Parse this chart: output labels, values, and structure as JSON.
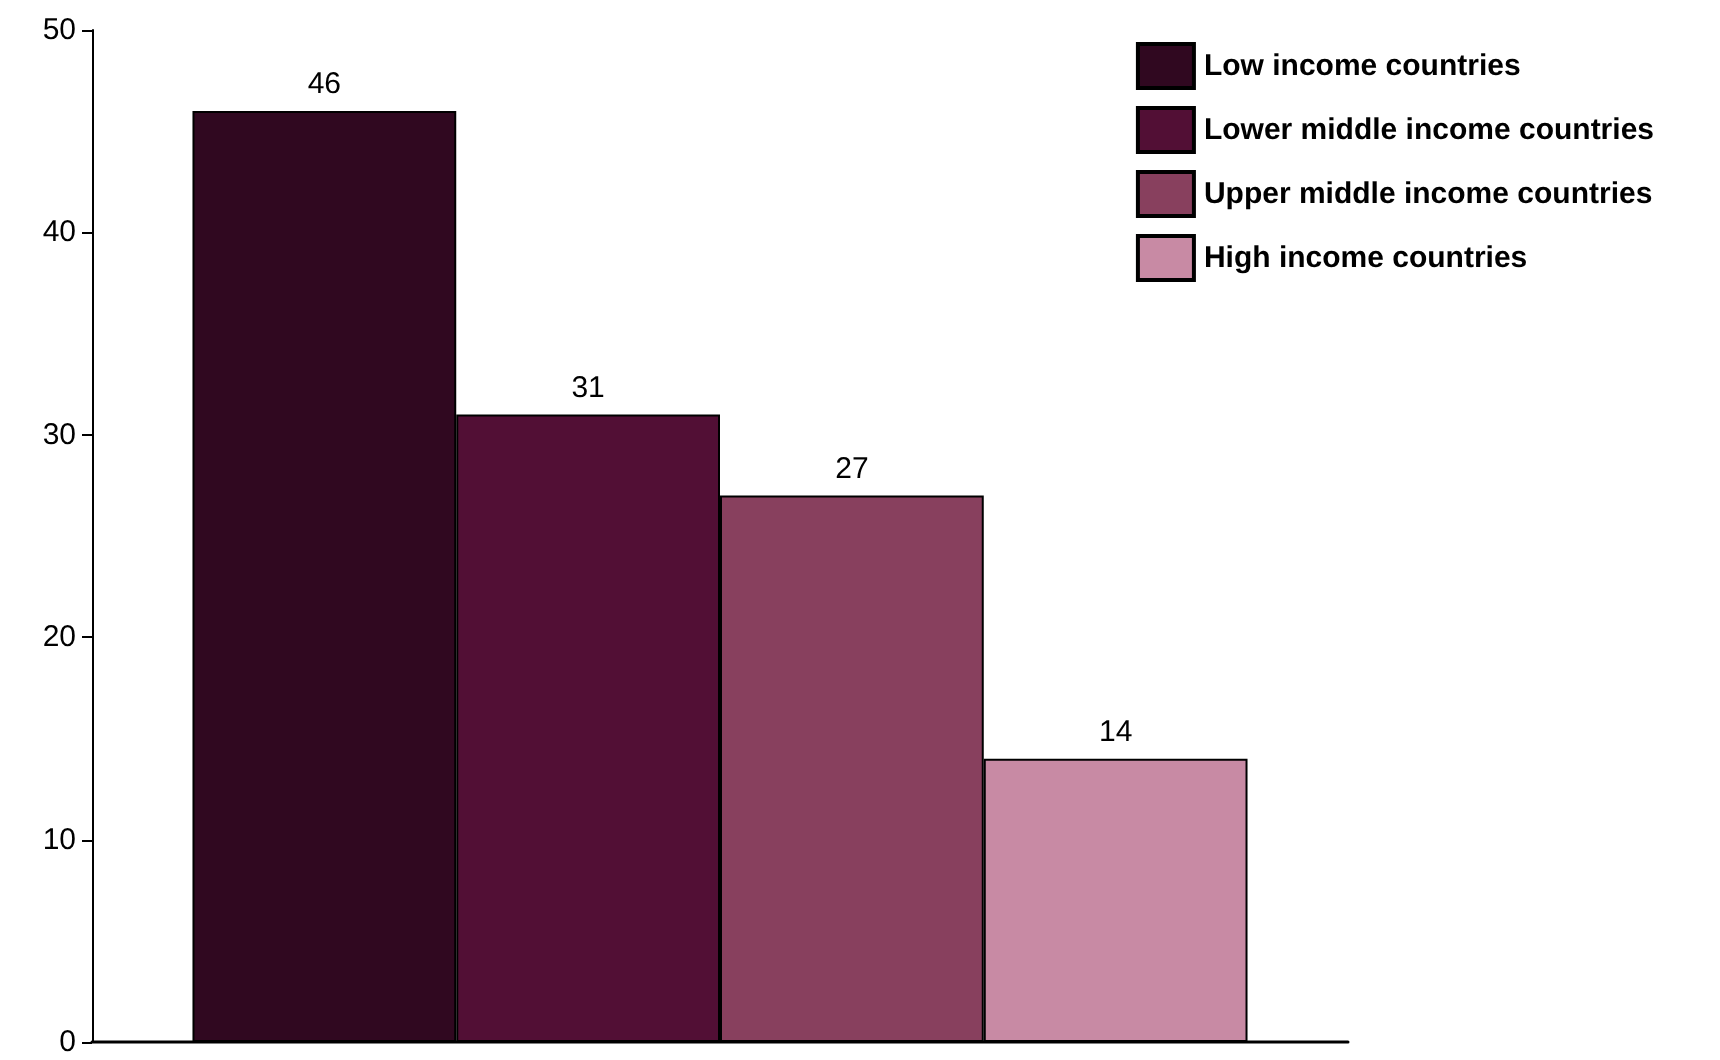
{
  "chart_data": {
    "type": "bar",
    "categories": [
      null
    ],
    "series": [
      {
        "name": "Low income countries",
        "color": "#300820",
        "values": [
          46
        ]
      },
      {
        "name": "Lower middle income countries",
        "color": "#520f35",
        "values": [
          31
        ]
      },
      {
        "name": "Upper middle income countries",
        "color": "#88405e",
        "values": [
          27
        ]
      },
      {
        "name": "High income countries",
        "color": "#c88aa4",
        "values": [
          14
        ]
      }
    ],
    "ylim": [
      0,
      50
    ],
    "yticks": [
      0,
      10,
      20,
      30,
      40,
      50
    ],
    "data_labels": true,
    "legend": "top right",
    "grid": false
  }
}
